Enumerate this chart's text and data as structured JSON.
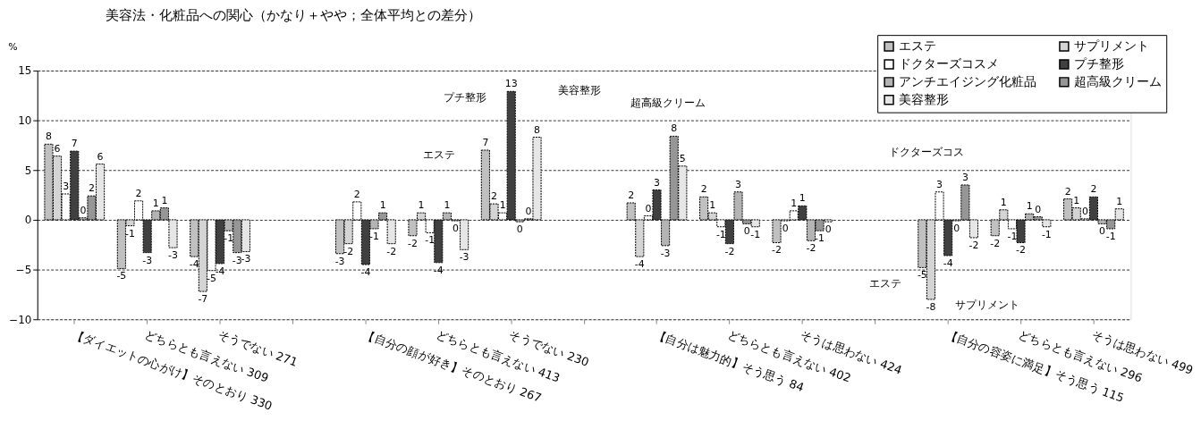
{
  "chart_data": {
    "type": "bar",
    "title": "美容法・化粧品への関心（かなり＋やや；全体平均との差分）",
    "ylabel": "%",
    "categories": [
      "【ダイエットの心がけ】そのとおり 330",
      "どちらとも言えない 309",
      "そうでない 271",
      null,
      "【自分の顔が好き】そのとおり 267",
      "どちらとも言えない 413",
      "そうでない 230",
      null,
      "【自分は魅力的】そう思う 84",
      "どちらとも言えない 402",
      "そうは思わない 424",
      null,
      "【自分の容姿に満足】そう思う 115",
      "どちらとも言えない 296",
      "そうは思わない 499"
    ],
    "series": [
      {
        "name": "エステ",
        "color": "#c0c0c0",
        "values": [
          7.6,
          -4.9,
          -3.7,
          null,
          -3.4,
          -1.6,
          7.0,
          null,
          1.7,
          2.3,
          -2.3,
          null,
          -4.8,
          -1.6,
          2.1
        ],
        "value_labels": [
          "8",
          "-5",
          "-4",
          null,
          "-3",
          "-2",
          "7",
          null,
          "2",
          "2",
          "-2",
          null,
          "-5",
          "-2",
          "2"
        ]
      },
      {
        "name": "サプリメント",
        "color": "#d4d4d4",
        "values": [
          6.4,
          -0.6,
          -7.2,
          null,
          -2.4,
          0.7,
          1.6,
          null,
          -3.7,
          0.7,
          -0.1,
          null,
          -8.0,
          1.0,
          1.2
        ],
        "value_labels": [
          "6",
          "-1",
          "-7",
          null,
          "-2",
          "1",
          "2",
          null,
          "-4",
          "1",
          "0",
          null,
          "-8",
          "1",
          "1"
        ]
      },
      {
        "name": "ドクターズコスメ",
        "color": "#ffffff",
        "values": [
          2.6,
          1.9,
          -5.1,
          null,
          1.8,
          -1.3,
          0.7,
          null,
          0.4,
          -0.7,
          0.9,
          null,
          2.8,
          -0.9,
          0.1
        ],
        "value_labels": [
          "3",
          "2",
          "-5",
          null,
          "2",
          "-1",
          "1",
          null,
          "0",
          "-1",
          "1",
          null,
          "3",
          "-1",
          "0"
        ]
      },
      {
        "name": "プチ整形",
        "color": "#404040",
        "values": [
          6.9,
          -3.3,
          -4.4,
          null,
          -4.5,
          -4.3,
          12.9,
          null,
          3.0,
          -2.4,
          1.4,
          null,
          -3.6,
          -2.3,
          2.3
        ],
        "value_labels": [
          "7",
          "-3",
          "-4",
          null,
          "-4",
          "-4",
          "13",
          null,
          "3",
          "-2",
          "1",
          null,
          "-4",
          "-2",
          "2"
        ]
      },
      {
        "name": "アンチエイジング化粧品",
        "color": "#b4b4b4",
        "values": [
          0.2,
          0.9,
          -1.1,
          null,
          -0.9,
          0.7,
          -0.2,
          null,
          -2.6,
          2.8,
          -2.1,
          null,
          -0.1,
          0.6,
          -0.4
        ],
        "value_labels": [
          "0",
          "1",
          "-1",
          null,
          "-1",
          "1",
          "0",
          null,
          "-3",
          "3",
          "-2",
          null,
          "0",
          "1",
          "0"
        ]
      },
      {
        "name": "超高級クリーム",
        "color": "#969696",
        "values": [
          2.4,
          1.2,
          -3.3,
          null,
          0.7,
          -0.1,
          0.1,
          null,
          8.4,
          -0.4,
          -1.1,
          null,
          3.5,
          0.3,
          -0.9
        ],
        "value_labels": [
          "2",
          "1",
          "-3",
          null,
          "1",
          "0",
          "0",
          null,
          "8",
          "0",
          "-1",
          null,
          "3",
          "0",
          "-1"
        ]
      },
      {
        "name": "美容整形",
        "color": "#e6e6e6",
        "values": [
          5.6,
          -2.8,
          -3.2,
          null,
          -2.4,
          -3.0,
          8.3,
          null,
          5.4,
          -0.7,
          -0.2,
          null,
          -1.8,
          -0.7,
          1.1
        ],
        "value_labels": [
          "6",
          "-3",
          "-3",
          null,
          "-2",
          "-3",
          "8",
          null,
          "5",
          "-1",
          "0",
          null,
          "-2",
          "-1",
          "1"
        ]
      }
    ],
    "ylim": [
      -10,
      15
    ],
    "yticks": [
      -10,
      -5,
      0,
      5,
      10,
      15
    ],
    "grid": "y",
    "legend": "top right",
    "annotations": [
      "プチ整形",
      "美容整形",
      "エステ",
      "超高級クリーム",
      "ドクターズコス",
      "エステ",
      "サプリメント"
    ]
  }
}
